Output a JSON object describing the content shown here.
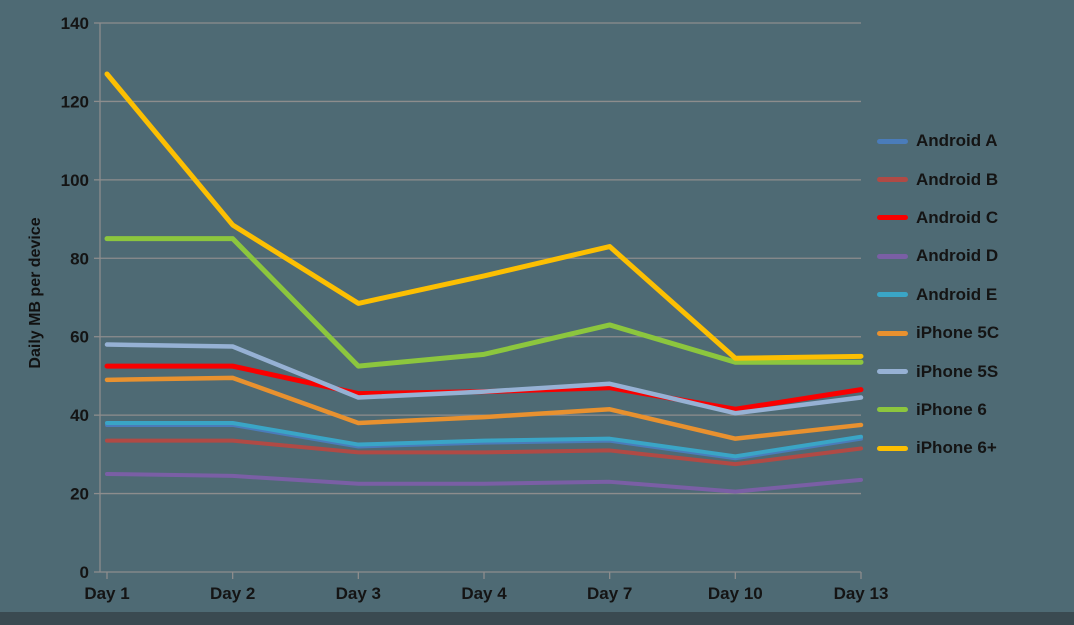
{
  "colors": {
    "background": "#4e6a74",
    "gridline": "#8d8d8d",
    "text": "#141414",
    "bottom_bar": "#3a4a51"
  },
  "chart_data": {
    "type": "line",
    "title": "",
    "xlabel": "",
    "ylabel": "Daily MB per device",
    "categories": [
      "Day 1",
      "Day 2",
      "Day 3",
      "Day 4",
      "Day 7",
      "Day 10",
      "Day 13"
    ],
    "ylim": [
      0,
      140
    ],
    "yticks": [
      0,
      20,
      40,
      60,
      80,
      100,
      120,
      140
    ],
    "grid": true,
    "legend_position": "right",
    "series": [
      {
        "name": "Android A",
        "color": "#4a7cba",
        "width": 4,
        "values": [
          37.5,
          37.5,
          32,
          33,
          33.5,
          29,
          34
        ]
      },
      {
        "name": "Android B",
        "color": "#b04a45",
        "width": 4,
        "values": [
          33.5,
          33.5,
          30.5,
          30.5,
          31,
          27.5,
          31.5
        ]
      },
      {
        "name": "Android C",
        "color": "#f90000",
        "width": 5,
        "values": [
          52.5,
          52.5,
          45.5,
          46,
          47,
          41.5,
          46.5
        ]
      },
      {
        "name": "Android D",
        "color": "#7a5fa5",
        "width": 4,
        "values": [
          25,
          24.5,
          22.5,
          22.5,
          23,
          20.5,
          23.5
        ]
      },
      {
        "name": "Android E",
        "color": "#3aa5c6",
        "width": 4,
        "values": [
          38,
          38,
          32.5,
          33.5,
          34,
          29.5,
          34.5
        ]
      },
      {
        "name": "iPhone 5C",
        "color": "#e8912f",
        "width": 4.5,
        "values": [
          49,
          49.5,
          38,
          39.5,
          41.5,
          34,
          37.5
        ]
      },
      {
        "name": "iPhone 5S",
        "color": "#96b1d4",
        "width": 4.5,
        "values": [
          58,
          57.5,
          44.5,
          46,
          48,
          40.5,
          44.5
        ]
      },
      {
        "name": "iPhone 6",
        "color": "#8cc63e",
        "width": 5,
        "values": [
          85,
          85,
          52.5,
          55.5,
          63,
          53.5,
          53.5
        ]
      },
      {
        "name": "iPhone 6+",
        "color": "#fcbf02",
        "width": 5,
        "values": [
          127,
          88.5,
          68.5,
          75.5,
          83,
          54.5,
          55
        ]
      }
    ]
  }
}
